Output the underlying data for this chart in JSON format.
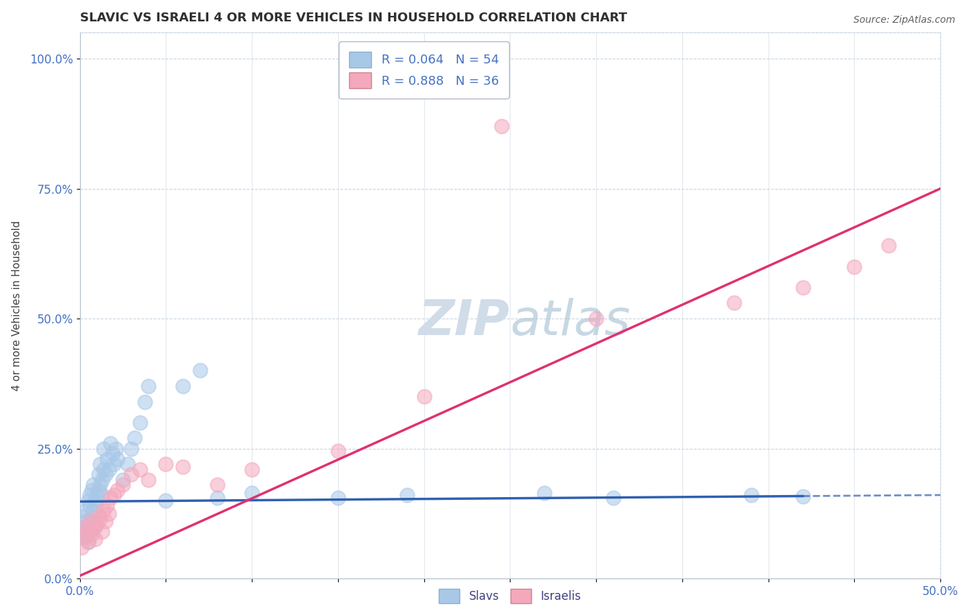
{
  "title": "SLAVIC VS ISRAELI 4 OR MORE VEHICLES IN HOUSEHOLD CORRELATION CHART",
  "source_text": "Source: ZipAtlas.com",
  "ylabel": "4 or more Vehicles in Household",
  "xlim": [
    0.0,
    0.5
  ],
  "ylim": [
    0.0,
    1.05
  ],
  "xticks": [
    0.0,
    0.05,
    0.1,
    0.15,
    0.2,
    0.25,
    0.3,
    0.35,
    0.4,
    0.45,
    0.5
  ],
  "yticks": [
    0.0,
    0.25,
    0.5,
    0.75,
    1.0
  ],
  "yticklabels": [
    "0.0%",
    "25.0%",
    "50.0%",
    "75.0%",
    "100.0%"
  ],
  "slavs_R": 0.064,
  "slavs_N": 54,
  "israelis_R": 0.888,
  "israelis_N": 36,
  "slavs_color": "#a8c8e8",
  "israelis_color": "#f4a8bc",
  "slavs_line_color": "#3060b0",
  "israelis_line_color": "#e03070",
  "background_color": "#ffffff",
  "grid_color": "#c8d4e0",
  "title_color": "#303030",
  "axis_label_color": "#404040",
  "tick_color": "#4472c4",
  "watermark_color": "#d0dce8",
  "slavs_line_intercept": 0.148,
  "slavs_line_slope": 0.025,
  "slavs_line_solid_end": 0.42,
  "israelis_line_intercept": 0.005,
  "israelis_line_slope": 1.49,
  "slavs_x": [
    0.001,
    0.002,
    0.002,
    0.003,
    0.003,
    0.004,
    0.004,
    0.005,
    0.005,
    0.006,
    0.006,
    0.006,
    0.007,
    0.007,
    0.008,
    0.008,
    0.009,
    0.009,
    0.01,
    0.01,
    0.011,
    0.011,
    0.012,
    0.012,
    0.013,
    0.013,
    0.014,
    0.014,
    0.015,
    0.016,
    0.017,
    0.018,
    0.019,
    0.02,
    0.021,
    0.022,
    0.025,
    0.028,
    0.03,
    0.032,
    0.035,
    0.038,
    0.04,
    0.05,
    0.06,
    0.07,
    0.08,
    0.1,
    0.15,
    0.19,
    0.27,
    0.31,
    0.39,
    0.42
  ],
  "slavs_y": [
    0.08,
    0.09,
    0.12,
    0.1,
    0.13,
    0.11,
    0.08,
    0.15,
    0.07,
    0.16,
    0.09,
    0.14,
    0.17,
    0.12,
    0.13,
    0.18,
    0.15,
    0.1,
    0.16,
    0.14,
    0.17,
    0.2,
    0.18,
    0.22,
    0.19,
    0.16,
    0.21,
    0.25,
    0.2,
    0.23,
    0.21,
    0.26,
    0.24,
    0.22,
    0.25,
    0.23,
    0.19,
    0.22,
    0.25,
    0.27,
    0.3,
    0.34,
    0.37,
    0.15,
    0.37,
    0.4,
    0.155,
    0.165,
    0.155,
    0.16,
    0.165,
    0.155,
    0.16,
    0.158
  ],
  "israelis_x": [
    0.001,
    0.002,
    0.003,
    0.004,
    0.005,
    0.006,
    0.007,
    0.008,
    0.009,
    0.01,
    0.011,
    0.012,
    0.013,
    0.014,
    0.015,
    0.016,
    0.017,
    0.018,
    0.02,
    0.022,
    0.025,
    0.03,
    0.035,
    0.04,
    0.05,
    0.06,
    0.08,
    0.1,
    0.15,
    0.2,
    0.245,
    0.3,
    0.38,
    0.42,
    0.45,
    0.47
  ],
  "israelis_y": [
    0.06,
    0.08,
    0.1,
    0.09,
    0.07,
    0.11,
    0.085,
    0.095,
    0.075,
    0.105,
    0.12,
    0.115,
    0.09,
    0.13,
    0.11,
    0.14,
    0.125,
    0.155,
    0.16,
    0.17,
    0.18,
    0.2,
    0.21,
    0.19,
    0.22,
    0.215,
    0.18,
    0.21,
    0.245,
    0.35,
    0.87,
    0.5,
    0.53,
    0.56,
    0.6,
    0.64
  ]
}
